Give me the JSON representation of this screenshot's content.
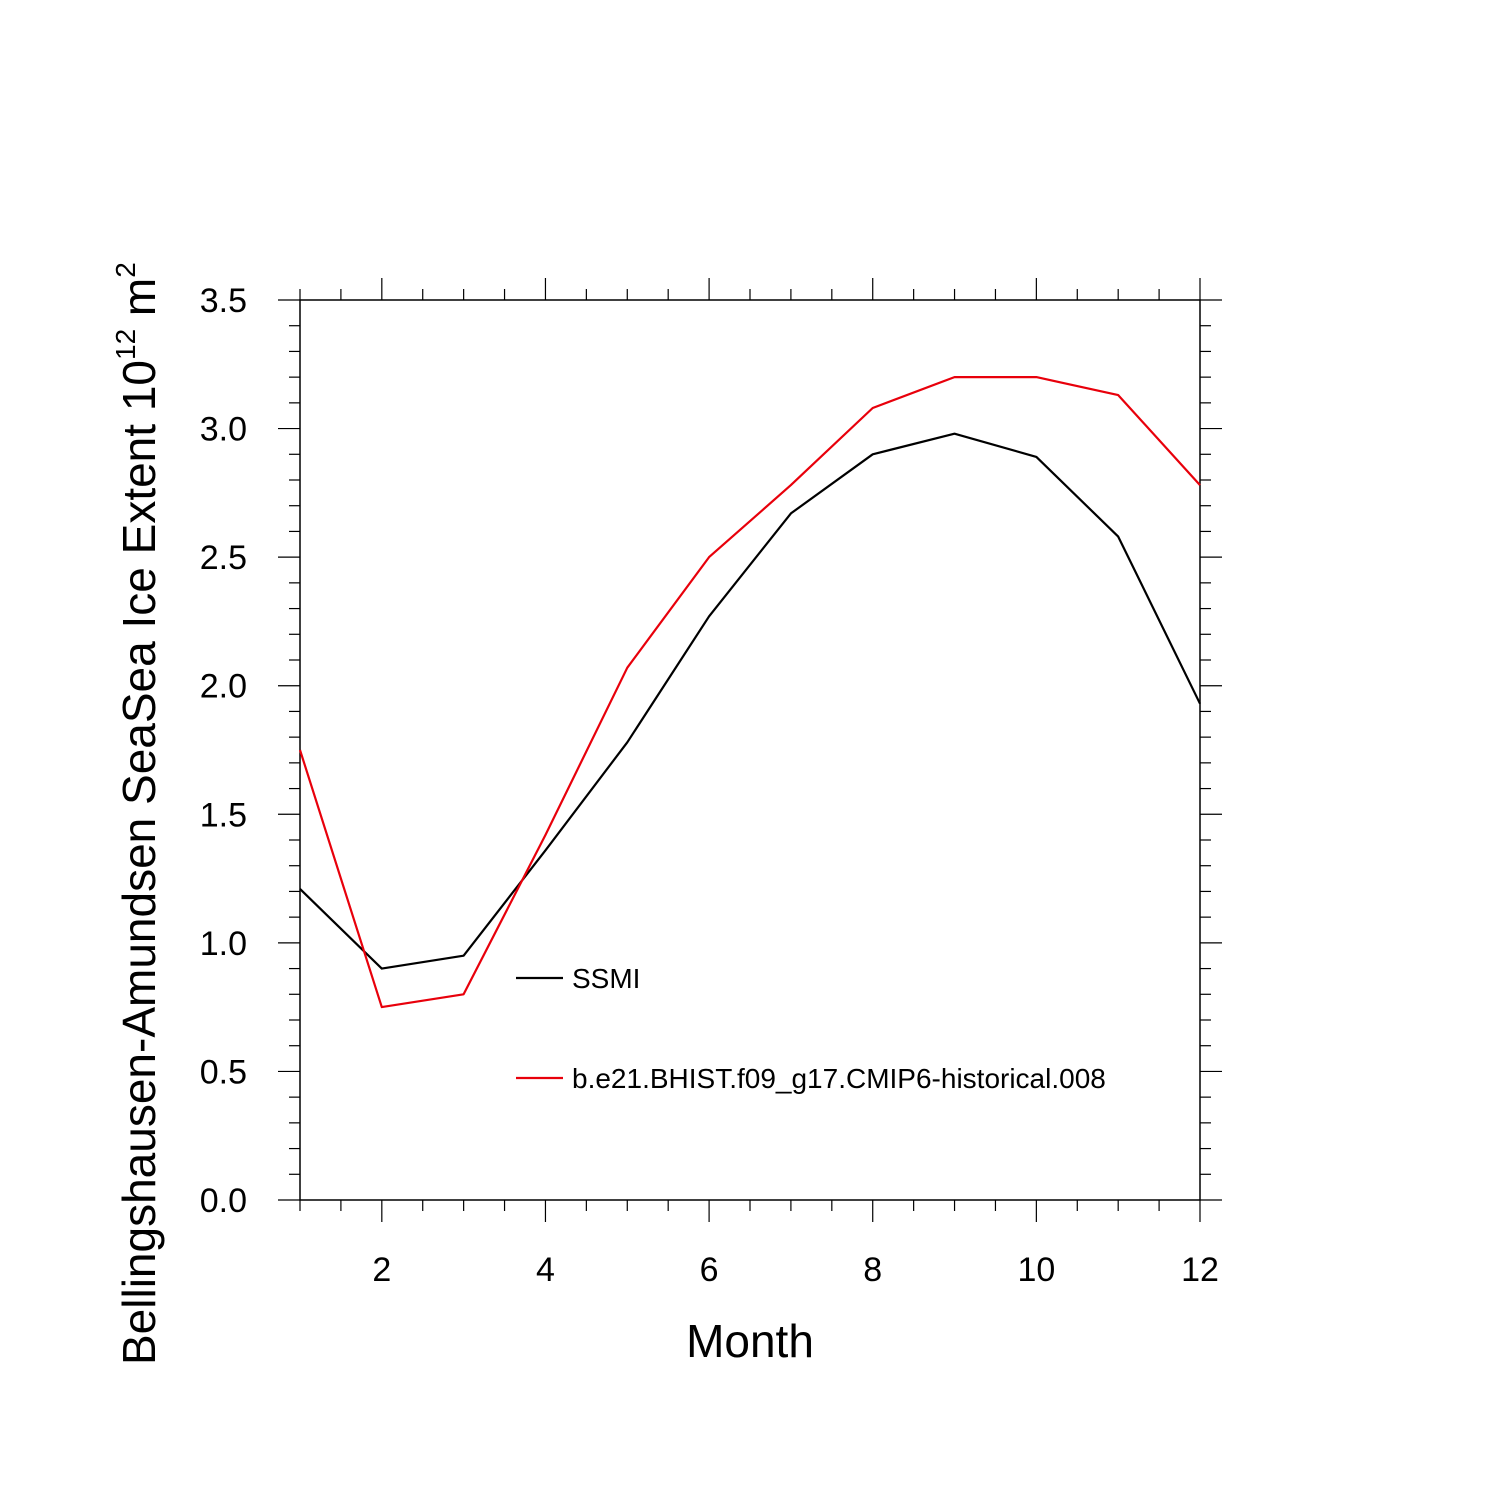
{
  "chart_data": {
    "type": "line",
    "title": "",
    "xlabel": "Month",
    "ylabel": "Bellingshausen-Amundsen SeaSea Ice Extent 10",
    "ylabel_exp": "12",
    "ylabel_unit": " m",
    "ylabel_unit_exp": "2",
    "xlim": [
      1,
      12
    ],
    "ylim": [
      0,
      3.5
    ],
    "x_ticks": [
      2,
      4,
      6,
      8,
      10,
      12
    ],
    "x_tick_labels": [
      "2",
      "4",
      "6",
      "8",
      "10",
      "12"
    ],
    "y_ticks": [
      0,
      0.5,
      1.0,
      1.5,
      2.0,
      2.5,
      3.0,
      3.5
    ],
    "y_tick_labels": [
      "0.0",
      "0.5",
      "1.0",
      "1.5",
      "2.0",
      "2.5",
      "3.0",
      "3.5"
    ],
    "grid": false,
    "legend_position": "inside lower-middle",
    "x": [
      1,
      2,
      3,
      4,
      5,
      6,
      7,
      8,
      9,
      10,
      11,
      12
    ],
    "series": [
      {
        "name": "SSMI",
        "color": "#000000",
        "values": [
          1.21,
          0.9,
          0.95,
          1.36,
          1.78,
          2.27,
          2.67,
          2.9,
          2.98,
          2.89,
          2.58,
          1.93
        ]
      },
      {
        "name": "b.e21.BHIST.f09_g17.CMIP6-historical.008",
        "color": "#e8000b",
        "values": [
          1.75,
          0.75,
          0.8,
          1.42,
          2.07,
          2.5,
          2.78,
          3.08,
          3.2,
          3.2,
          3.13,
          2.78
        ]
      }
    ]
  }
}
